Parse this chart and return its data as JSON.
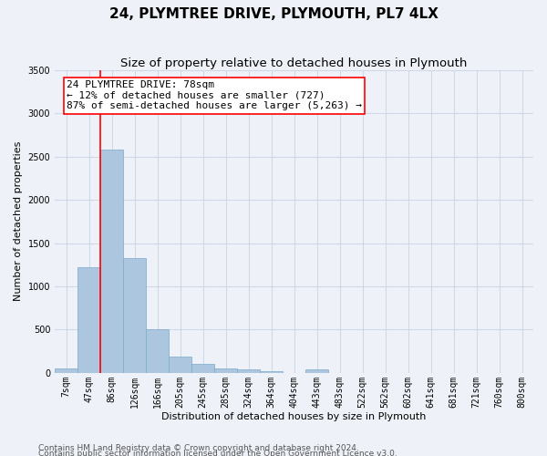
{
  "title1": "24, PLYMTREE DRIVE, PLYMOUTH, PL7 4LX",
  "title2": "Size of property relative to detached houses in Plymouth",
  "xlabel": "Distribution of detached houses by size in Plymouth",
  "ylabel": "Number of detached properties",
  "categories": [
    "7sqm",
    "47sqm",
    "86sqm",
    "126sqm",
    "166sqm",
    "205sqm",
    "245sqm",
    "285sqm",
    "324sqm",
    "364sqm",
    "404sqm",
    "443sqm",
    "483sqm",
    "522sqm",
    "562sqm",
    "602sqm",
    "641sqm",
    "681sqm",
    "721sqm",
    "760sqm",
    "800sqm"
  ],
  "bar_values": [
    50,
    1220,
    2580,
    1330,
    500,
    190,
    100,
    50,
    40,
    25,
    0,
    40,
    0,
    0,
    0,
    0,
    0,
    0,
    0,
    0,
    0
  ],
  "bar_color": "#adc6e0",
  "bar_edge_color": "#7aaaca",
  "grid_color": "#d0d8e8",
  "background_color": "#eef2f8",
  "vline_color": "red",
  "vline_x_index": 2,
  "annotation_text": "24 PLYMTREE DRIVE: 78sqm\n← 12% of detached houses are smaller (727)\n87% of semi-detached houses are larger (5,263) →",
  "annotation_box_color": "white",
  "annotation_box_edge": "red",
  "ylim": [
    0,
    3500
  ],
  "yticks": [
    0,
    500,
    1000,
    1500,
    2000,
    2500,
    3000,
    3500
  ],
  "footer1": "Contains HM Land Registry data © Crown copyright and database right 2024.",
  "footer2": "Contains public sector information licensed under the Open Government Licence v3.0.",
  "title1_fontsize": 11,
  "title2_fontsize": 9.5,
  "axis_label_fontsize": 8,
  "tick_fontsize": 7,
  "annotation_fontsize": 8,
  "footer_fontsize": 6.5
}
